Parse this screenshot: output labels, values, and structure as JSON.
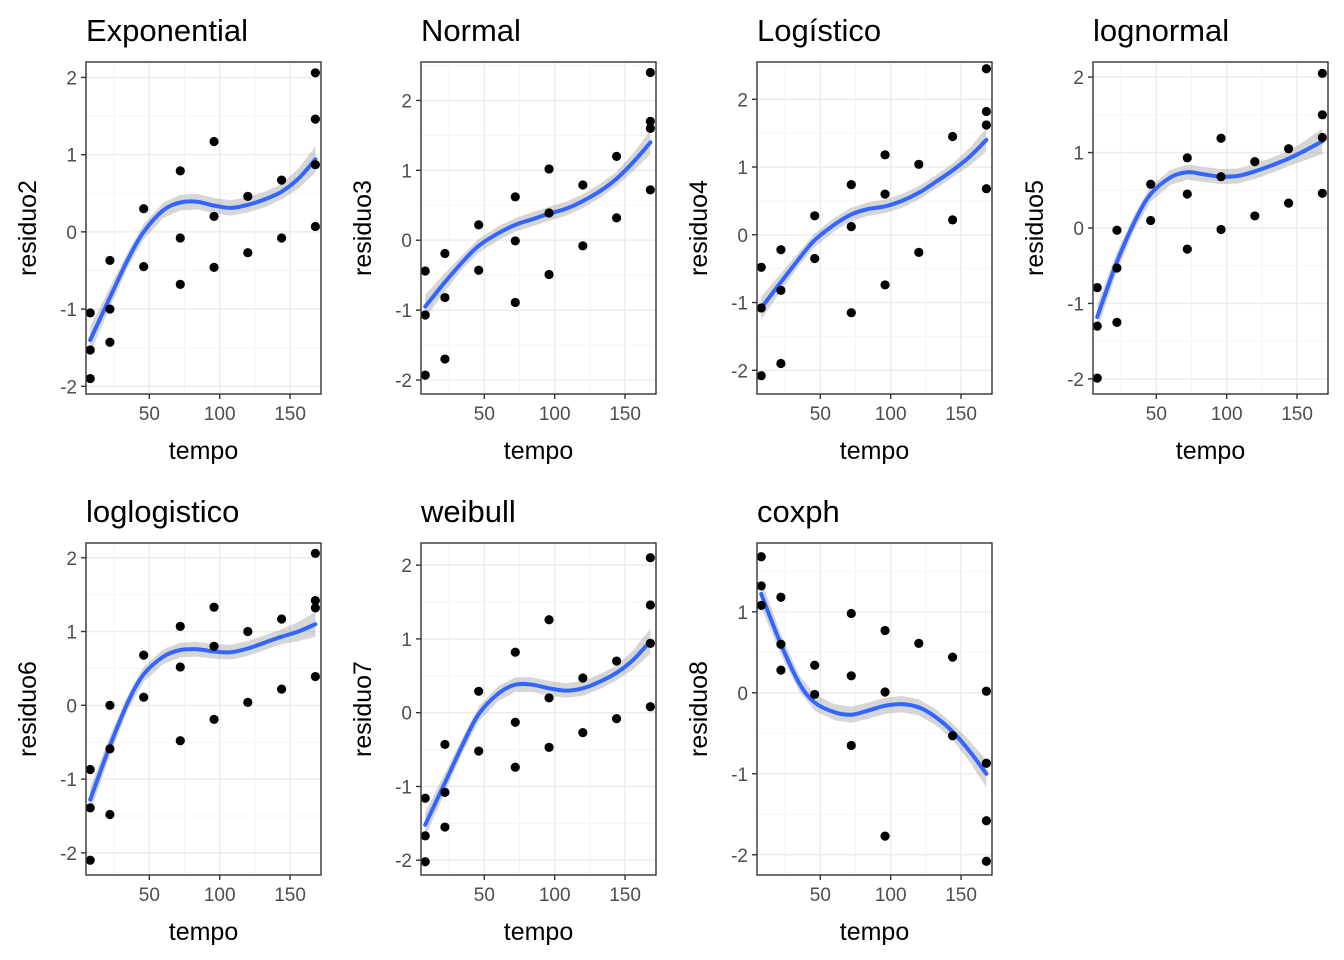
{
  "chart_data": [
    {
      "type": "scatter",
      "title": "Exponential",
      "xlabel": "tempo",
      "ylabel": "residuo2",
      "xlim": [
        5,
        172
      ],
      "ylim": [
        -2.1,
        2.2
      ],
      "xticks": [
        50,
        100,
        150
      ],
      "yticks": [
        -2,
        -1,
        0,
        1,
        2
      ],
      "points": [
        [
          8,
          -1.05
        ],
        [
          8,
          -1.53
        ],
        [
          8,
          -1.9
        ],
        [
          22,
          -0.37
        ],
        [
          22,
          -1.0
        ],
        [
          22,
          -1.43
        ],
        [
          46,
          0.3
        ],
        [
          46,
          -0.45
        ],
        [
          72,
          0.79
        ],
        [
          72,
          -0.08
        ],
        [
          72,
          -0.68
        ],
        [
          96,
          1.17
        ],
        [
          96,
          0.2
        ],
        [
          96,
          -0.46
        ],
        [
          120,
          0.46
        ],
        [
          120,
          -0.27
        ],
        [
          144,
          0.67
        ],
        [
          144,
          -0.08
        ],
        [
          168,
          2.06
        ],
        [
          168,
          1.46
        ],
        [
          168,
          0.87
        ],
        [
          168,
          0.07
        ]
      ],
      "smooth": [
        [
          8,
          -1.4
        ],
        [
          22,
          -0.85
        ],
        [
          35,
          -0.35
        ],
        [
          46,
          0.0
        ],
        [
          60,
          0.28
        ],
        [
          72,
          0.38
        ],
        [
          84,
          0.39
        ],
        [
          96,
          0.34
        ],
        [
          108,
          0.31
        ],
        [
          120,
          0.35
        ],
        [
          132,
          0.42
        ],
        [
          144,
          0.52
        ],
        [
          156,
          0.69
        ],
        [
          168,
          0.94
        ]
      ]
    },
    {
      "type": "scatter",
      "title": "Normal",
      "xlabel": "tempo",
      "ylabel": "residuo3",
      "xlim": [
        5,
        172
      ],
      "ylim": [
        -2.2,
        2.55
      ],
      "xticks": [
        50,
        100,
        150
      ],
      "yticks": [
        -2,
        -1,
        0,
        1,
        2
      ],
      "points": [
        [
          8,
          -0.44
        ],
        [
          8,
          -1.07
        ],
        [
          8,
          -1.93
        ],
        [
          22,
          -0.19
        ],
        [
          22,
          -0.82
        ],
        [
          22,
          -1.7
        ],
        [
          46,
          0.22
        ],
        [
          46,
          -0.43
        ],
        [
          72,
          0.62
        ],
        [
          72,
          -0.01
        ],
        [
          72,
          -0.89
        ],
        [
          96,
          1.02
        ],
        [
          96,
          0.39
        ],
        [
          96,
          -0.49
        ],
        [
          120,
          0.79
        ],
        [
          120,
          -0.08
        ],
        [
          144,
          1.2
        ],
        [
          144,
          0.32
        ],
        [
          168,
          2.4
        ],
        [
          168,
          1.7
        ],
        [
          168,
          1.6
        ],
        [
          168,
          0.72
        ]
      ],
      "smooth": [
        [
          8,
          -0.95
        ],
        [
          22,
          -0.6
        ],
        [
          35,
          -0.3
        ],
        [
          46,
          -0.08
        ],
        [
          60,
          0.1
        ],
        [
          72,
          0.22
        ],
        [
          84,
          0.3
        ],
        [
          96,
          0.38
        ],
        [
          108,
          0.45
        ],
        [
          120,
          0.56
        ],
        [
          132,
          0.7
        ],
        [
          144,
          0.88
        ],
        [
          156,
          1.12
        ],
        [
          168,
          1.4
        ]
      ]
    },
    {
      "type": "scatter",
      "title": "Logístico",
      "xlabel": "tempo",
      "ylabel": "residuo4",
      "xlim": [
        5,
        172
      ],
      "ylim": [
        -2.35,
        2.55
      ],
      "xticks": [
        50,
        100,
        150
      ],
      "yticks": [
        -2,
        -1,
        0,
        1,
        2
      ],
      "points": [
        [
          8,
          -0.48
        ],
        [
          8,
          -1.08
        ],
        [
          8,
          -2.08
        ],
        [
          22,
          -0.22
        ],
        [
          22,
          -0.82
        ],
        [
          22,
          -1.9
        ],
        [
          46,
          0.28
        ],
        [
          46,
          -0.35
        ],
        [
          72,
          0.74
        ],
        [
          72,
          0.12
        ],
        [
          72,
          -1.15
        ],
        [
          96,
          1.18
        ],
        [
          96,
          0.6
        ],
        [
          96,
          -0.74
        ],
        [
          120,
          1.04
        ],
        [
          120,
          -0.26
        ],
        [
          144,
          1.45
        ],
        [
          144,
          0.22
        ],
        [
          168,
          2.45
        ],
        [
          168,
          1.82
        ],
        [
          168,
          1.62
        ],
        [
          168,
          0.68
        ]
      ],
      "smooth": [
        [
          8,
          -1.08
        ],
        [
          22,
          -0.7
        ],
        [
          35,
          -0.35
        ],
        [
          46,
          -0.08
        ],
        [
          60,
          0.15
        ],
        [
          72,
          0.3
        ],
        [
          84,
          0.38
        ],
        [
          96,
          0.42
        ],
        [
          108,
          0.5
        ],
        [
          120,
          0.62
        ],
        [
          132,
          0.78
        ],
        [
          144,
          0.95
        ],
        [
          156,
          1.15
        ],
        [
          168,
          1.4
        ]
      ]
    },
    {
      "type": "scatter",
      "title": "lognormal",
      "xlabel": "tempo",
      "ylabel": "residuo5",
      "xlim": [
        5,
        172
      ],
      "ylim": [
        -2.2,
        2.2
      ],
      "xticks": [
        50,
        100,
        150
      ],
      "yticks": [
        -2,
        -1,
        0,
        1,
        2
      ],
      "points": [
        [
          8,
          -0.79
        ],
        [
          8,
          -1.3
        ],
        [
          8,
          -1.99
        ],
        [
          22,
          -0.03
        ],
        [
          22,
          -0.53
        ],
        [
          22,
          -1.25
        ],
        [
          46,
          0.58
        ],
        [
          46,
          0.1
        ],
        [
          72,
          0.93
        ],
        [
          72,
          0.45
        ],
        [
          72,
          -0.28
        ],
        [
          96,
          1.19
        ],
        [
          96,
          0.68
        ],
        [
          96,
          -0.02
        ],
        [
          120,
          0.88
        ],
        [
          120,
          0.16
        ],
        [
          144,
          1.05
        ],
        [
          144,
          0.33
        ],
        [
          168,
          2.05
        ],
        [
          168,
          1.5
        ],
        [
          168,
          1.2
        ],
        [
          168,
          0.46
        ]
      ],
      "smooth": [
        [
          8,
          -1.18
        ],
        [
          22,
          -0.45
        ],
        [
          35,
          0.1
        ],
        [
          46,
          0.45
        ],
        [
          60,
          0.67
        ],
        [
          72,
          0.74
        ],
        [
          84,
          0.71
        ],
        [
          96,
          0.68
        ],
        [
          108,
          0.69
        ],
        [
          120,
          0.75
        ],
        [
          132,
          0.83
        ],
        [
          144,
          0.92
        ],
        [
          156,
          1.03
        ],
        [
          168,
          1.15
        ]
      ]
    },
    {
      "type": "scatter",
      "title": "loglogistico",
      "xlabel": "tempo",
      "ylabel": "residuo6",
      "xlim": [
        5,
        172
      ],
      "ylim": [
        -2.3,
        2.2
      ],
      "xticks": [
        50,
        100,
        150
      ],
      "yticks": [
        -2,
        -1,
        0,
        1,
        2
      ],
      "points": [
        [
          8,
          -0.87
        ],
        [
          8,
          -1.39
        ],
        [
          8,
          -2.1
        ],
        [
          22,
          0.0
        ],
        [
          22,
          -0.59
        ],
        [
          22,
          -1.48
        ],
        [
          46,
          0.68
        ],
        [
          46,
          0.11
        ],
        [
          72,
          1.07
        ],
        [
          72,
          0.52
        ],
        [
          72,
          -0.48
        ],
        [
          96,
          1.33
        ],
        [
          96,
          0.8
        ],
        [
          96,
          -0.19
        ],
        [
          120,
          1.0
        ],
        [
          120,
          0.04
        ],
        [
          144,
          1.17
        ],
        [
          144,
          0.22
        ],
        [
          168,
          2.06
        ],
        [
          168,
          1.42
        ],
        [
          168,
          1.32
        ],
        [
          168,
          0.39
        ]
      ],
      "smooth": [
        [
          8,
          -1.28
        ],
        [
          22,
          -0.55
        ],
        [
          35,
          0.05
        ],
        [
          46,
          0.42
        ],
        [
          60,
          0.66
        ],
        [
          72,
          0.75
        ],
        [
          84,
          0.76
        ],
        [
          96,
          0.73
        ],
        [
          108,
          0.72
        ],
        [
          120,
          0.77
        ],
        [
          132,
          0.85
        ],
        [
          144,
          0.93
        ],
        [
          156,
          1.0
        ],
        [
          168,
          1.1
        ]
      ]
    },
    {
      "type": "scatter",
      "title": "weibull",
      "xlabel": "tempo",
      "ylabel": "residuo7",
      "xlim": [
        5,
        172
      ],
      "ylim": [
        -2.2,
        2.3
      ],
      "xticks": [
        50,
        100,
        150
      ],
      "yticks": [
        -2,
        -1,
        0,
        1,
        2
      ],
      "points": [
        [
          8,
          -1.16
        ],
        [
          8,
          -1.67
        ],
        [
          8,
          -2.02
        ],
        [
          22,
          -0.43
        ],
        [
          22,
          -1.08
        ],
        [
          22,
          -1.55
        ],
        [
          46,
          0.29
        ],
        [
          46,
          -0.52
        ],
        [
          72,
          0.82
        ],
        [
          72,
          -0.13
        ],
        [
          72,
          -0.74
        ],
        [
          96,
          1.26
        ],
        [
          96,
          0.2
        ],
        [
          96,
          -0.47
        ],
        [
          120,
          0.47
        ],
        [
          120,
          -0.27
        ],
        [
          144,
          0.7
        ],
        [
          144,
          -0.08
        ],
        [
          168,
          2.1
        ],
        [
          168,
          1.46
        ],
        [
          168,
          0.94
        ],
        [
          168,
          0.08
        ]
      ],
      "smooth": [
        [
          8,
          -1.52
        ],
        [
          22,
          -0.95
        ],
        [
          35,
          -0.42
        ],
        [
          46,
          -0.02
        ],
        [
          60,
          0.26
        ],
        [
          72,
          0.38
        ],
        [
          84,
          0.38
        ],
        [
          96,
          0.33
        ],
        [
          108,
          0.3
        ],
        [
          120,
          0.33
        ],
        [
          132,
          0.42
        ],
        [
          144,
          0.54
        ],
        [
          156,
          0.72
        ],
        [
          168,
          0.97
        ]
      ]
    },
    {
      "type": "scatter",
      "title": "coxph",
      "xlabel": "tempo",
      "ylabel": "residuo8",
      "xlim": [
        5,
        172
      ],
      "ylim": [
        -2.25,
        1.85
      ],
      "xticks": [
        50,
        100,
        150
      ],
      "yticks": [
        -2,
        -1,
        0,
        1
      ],
      "points": [
        [
          8,
          1.68
        ],
        [
          8,
          1.32
        ],
        [
          8,
          1.08
        ],
        [
          22,
          1.18
        ],
        [
          22,
          0.6
        ],
        [
          22,
          0.28
        ],
        [
          46,
          0.34
        ],
        [
          46,
          -0.02
        ],
        [
          72,
          0.98
        ],
        [
          72,
          0.21
        ],
        [
          72,
          -0.65
        ],
        [
          96,
          0.77
        ],
        [
          96,
          0.01
        ],
        [
          96,
          -1.77
        ],
        [
          120,
          0.61
        ],
        [
          144,
          0.44
        ],
        [
          144,
          -0.53
        ],
        [
          168,
          0.02
        ],
        [
          168,
          -0.87
        ],
        [
          168,
          -1.58
        ],
        [
          168,
          -2.08
        ]
      ],
      "smooth": [
        [
          8,
          1.22
        ],
        [
          22,
          0.6
        ],
        [
          35,
          0.12
        ],
        [
          46,
          -0.12
        ],
        [
          60,
          -0.24
        ],
        [
          72,
          -0.27
        ],
        [
          84,
          -0.22
        ],
        [
          96,
          -0.16
        ],
        [
          108,
          -0.14
        ],
        [
          120,
          -0.18
        ],
        [
          132,
          -0.3
        ],
        [
          144,
          -0.48
        ],
        [
          156,
          -0.72
        ],
        [
          168,
          -1.0
        ]
      ]
    }
  ],
  "colors": {
    "points": "#000000",
    "smooth_line": "#3366FF",
    "ribbon": "#999999",
    "grid_major": "#EBEBEB",
    "grid_minor": "#F5F5F5",
    "panel_border": "#333333"
  }
}
